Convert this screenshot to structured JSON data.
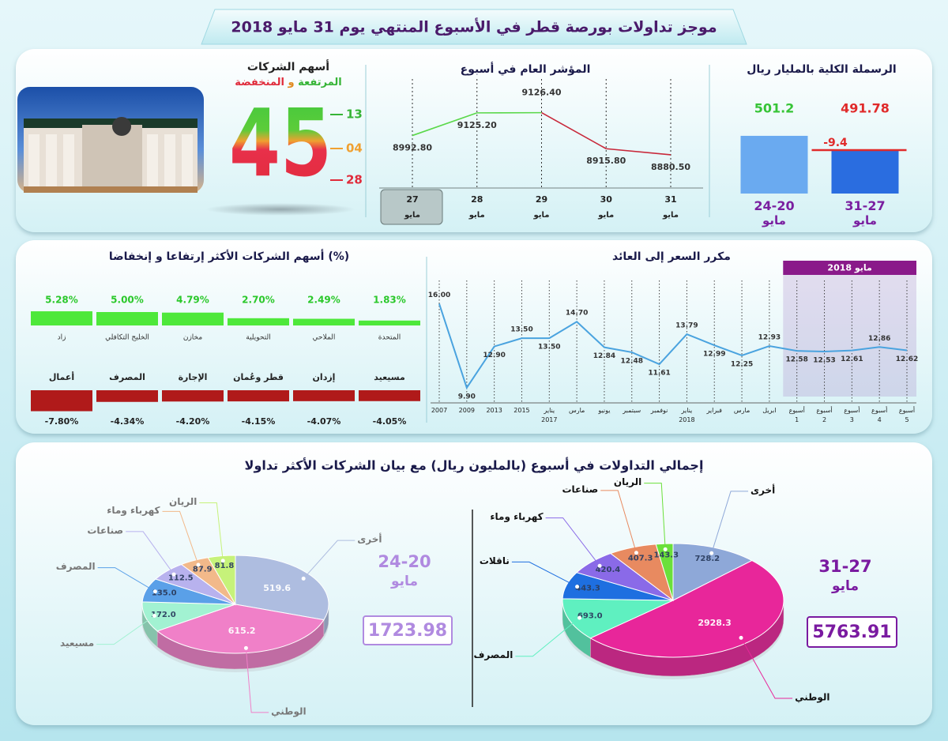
{
  "header": {
    "title": "موجز تداولات بورصة قطر في الأسبوع المنتهي يوم 31 مايو 2018"
  },
  "stocks_count": {
    "title": "أسهم الشركات",
    "subtitle_up": "المرتفعة",
    "subtitle_and": "و",
    "subtitle_down": "المنخفضة",
    "total": 45,
    "up": 13,
    "unchanged": "04",
    "down": 28
  },
  "trading": {
    "title": "إجمالي التداولات في أسبوع (بالمليون ريال) مع بيان الشركات الأكثر تداولا"
  },
  "chart_data": [
    {
      "type": "bar",
      "title": "الرسملة الكلية بالمليار ريال",
      "categories": [
        "24-20 مايو",
        "31-27 مايو"
      ],
      "values": [
        501.2,
        491.78
      ],
      "colors": [
        "#6aaaf0",
        "#2a6de0"
      ],
      "value_colors": [
        "#36c436",
        "#e02a2a"
      ],
      "ylim": [
        463,
        520
      ],
      "change": -9.4
    },
    {
      "type": "line",
      "title": "المؤشر العام في أسبوع",
      "categories": [
        "27",
        "28",
        "29",
        "30",
        "31"
      ],
      "category_sublabel": "مايو",
      "values": [
        8992.8,
        9125.2,
        9126.4,
        8915.8,
        8880.5
      ],
      "value_labels": [
        "8992.80",
        "9125.20",
        "9126.40",
        "8915.80",
        "8880.50"
      ],
      "up_color": "#5ad84a",
      "down_color": "#c8283a",
      "ylim": [
        8700,
        9300
      ]
    },
    {
      "type": "bar",
      "title": "أسهم الشركات الأكثر إرتفاعا و إنخفاضا (%)",
      "categories": [
        "زاد",
        "الخليج التكافلي",
        "مخازن",
        "التحويلية",
        "الملاحي",
        "المتحدة"
      ],
      "values": [
        5.28,
        5.0,
        4.79,
        2.7,
        2.49,
        1.83
      ],
      "value_labels": [
        "5.28%",
        "5.00%",
        "4.79%",
        "2.70%",
        "2.49%",
        "1.83%"
      ],
      "color": "#4ee83a",
      "ylim": [
        0,
        6
      ]
    },
    {
      "type": "bar",
      "categories": [
        "أعمال",
        "المصرف",
        "الإجارة",
        "قطر وعُمان",
        "إزدان",
        "مسيعيد"
      ],
      "values": [
        -7.8,
        -4.34,
        -4.2,
        -4.15,
        -4.07,
        -4.05
      ],
      "value_labels": [
        "-7.80%",
        "-4.34%",
        "-4.20%",
        "-4.15%",
        "-4.07%",
        "-4.05%"
      ],
      "color": "#b01a1a",
      "ylim": [
        -8,
        0
      ]
    },
    {
      "type": "line",
      "title": "مكرر السعر إلى العائد",
      "categories": [
        "2007",
        "2009",
        "2013",
        "2015",
        "يناير 2017",
        "مارس",
        "يونيو",
        "سبتمبر",
        "نوفمبر",
        "يناير 2018",
        "فبراير",
        "مارس",
        "ابريل",
        "أسبوع 1",
        "أسبوع 2",
        "أسبوع 3",
        "أسبوع 4",
        "أسبوع 5"
      ],
      "values": [
        16.0,
        9.9,
        12.9,
        13.5,
        13.5,
        14.7,
        12.84,
        12.48,
        11.61,
        13.79,
        12.99,
        12.25,
        12.93,
        12.58,
        12.53,
        12.61,
        12.86,
        12.62
      ],
      "value_labels": [
        "16.00",
        "9.90",
        "12.90",
        "13.50",
        "13.50",
        "14.70",
        "12.84",
        "12.48",
        "11.61",
        "13.79",
        "12.99",
        "12.25",
        "12.93",
        "12.58",
        "12.53",
        "12.61",
        "12.86",
        "12.62"
      ],
      "color": "#4aa3df",
      "ylim": [
        8.8,
        17.7
      ],
      "highlight_label": "مايو 2018"
    },
    {
      "type": "pie",
      "period": "24-20 مايو",
      "total": 1723.98,
      "categories": [
        "أخرى",
        "الوطني",
        "مسيعيد",
        "المصرف",
        "صناعات",
        "كهرباء وماء",
        "الريان"
      ],
      "values": [
        519.6,
        615.2,
        172.0,
        135.0,
        112.5,
        87.9,
        81.8
      ],
      "value_labels": [
        "519.6",
        "615.2",
        "172.0",
        "135.0",
        "112.5",
        "87.9",
        "81.8"
      ],
      "colors": [
        "#aebde0",
        "#f080c8",
        "#a2f2d2",
        "#5aa0e8",
        "#b8b2ee",
        "#f2b98a",
        "#c6f27a"
      ]
    },
    {
      "type": "pie",
      "period": "31-27 مايو",
      "total": 5763.91,
      "categories": [
        "أخرى",
        "الوطني",
        "المصرف",
        "ناقلات",
        "كهرباء وماء",
        "صناعات",
        "الريان"
      ],
      "values": [
        728.2,
        2928.3,
        693.0,
        443.3,
        420.4,
        407.3,
        143.3
      ],
      "value_labels": [
        "728.2",
        "2928.3",
        "693.0",
        "443.3",
        "420.4",
        "407.3",
        "143.3"
      ],
      "colors": [
        "#8ea8d8",
        "#e8269a",
        "#5ff0c0",
        "#1e6fe0",
        "#8a6ae8",
        "#e88a60",
        "#6ae03a"
      ]
    }
  ]
}
